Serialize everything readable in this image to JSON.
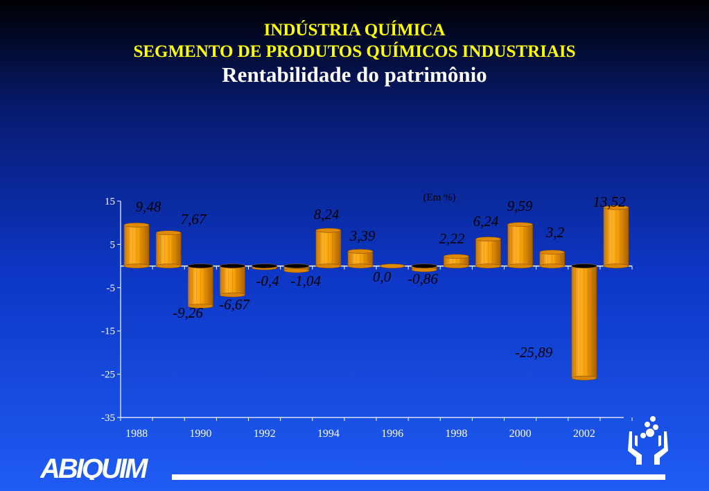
{
  "header": {
    "title_line1": "INDÚSTRIA QUÍMICA",
    "title_line2": "SEGMENTO DE PRODUTOS QUÍMICOS INDUSTRIAIS",
    "subtitle": "Rentabilidade do patrimônio"
  },
  "logo": {
    "text": "ABIQUIM"
  },
  "chart_data": {
    "type": "bar",
    "unit_note": "(Em %)",
    "categories": [
      "1988",
      "1989",
      "1990",
      "1991",
      "1992",
      "1993",
      "1994",
      "1995",
      "1996",
      "1997",
      "1998",
      "1999",
      "2000",
      "2001",
      "2002",
      "2003"
    ],
    "values": [
      9.48,
      7.67,
      -9.26,
      -6.67,
      -0.4,
      -1.04,
      8.24,
      3.39,
      0.0,
      -0.86,
      2.22,
      6.24,
      9.59,
      3.2,
      -25.89,
      13.52
    ],
    "value_labels": [
      "9,48",
      "7,67",
      "-9,26",
      "-6,67",
      "-0,4",
      "-1,04",
      "8,24",
      "3,39",
      "0,0",
      "-0,86",
      "2,22",
      "6,24",
      "9,59",
      "3,2",
      "-25,89",
      "13,52"
    ],
    "x_tick_labels": [
      "1988",
      "1990",
      "1992",
      "1994",
      "1996",
      "1998",
      "2000",
      "2002"
    ],
    "y_ticks": [
      15,
      5,
      -5,
      -15,
      -25,
      -35
    ],
    "ylim": [
      -35,
      15
    ],
    "grid": false,
    "colors": {
      "bar": "#f7a20a",
      "bar_light": "#ffd27a",
      "bar_dark": "#b56a00",
      "bar_top": "#e08a00",
      "value_label": "#000000",
      "axis": "#ffffff"
    }
  }
}
